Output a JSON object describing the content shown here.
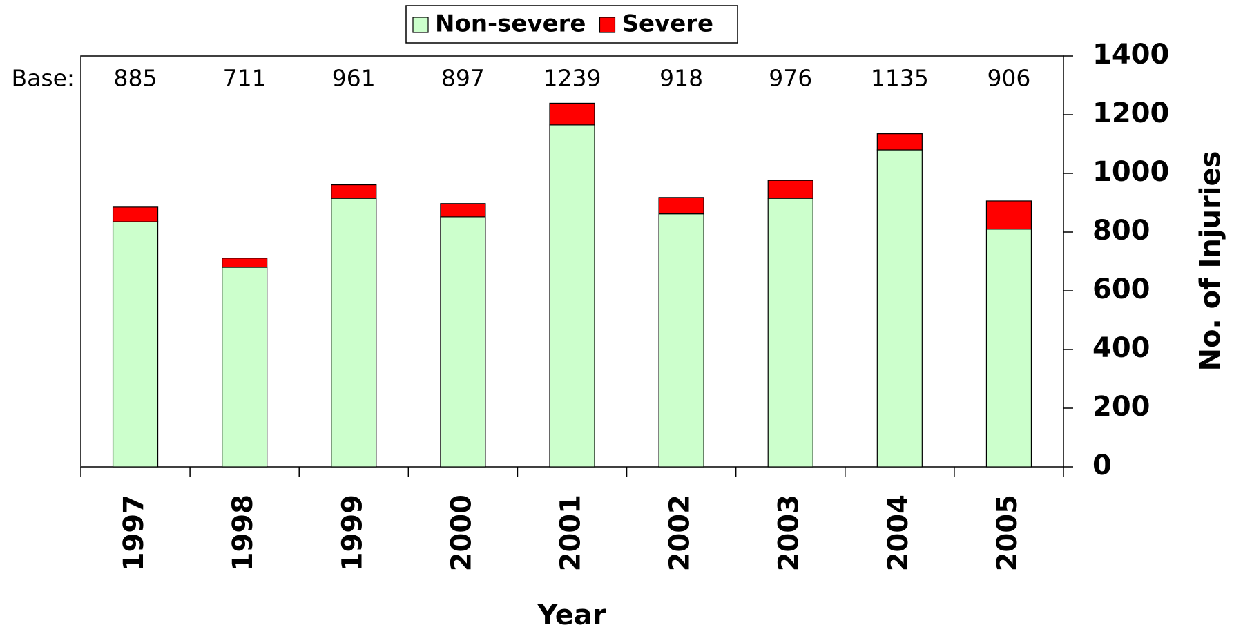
{
  "chart_data": {
    "type": "stacked_bar",
    "categories": [
      "1997",
      "1998",
      "1999",
      "2000",
      "2001",
      "2002",
      "2003",
      "2004",
      "2005"
    ],
    "series": [
      {
        "name": "Non-severe",
        "color": "#ccffcc",
        "values": [
          835,
          680,
          915,
          852,
          1165,
          862,
          915,
          1080,
          810
        ]
      },
      {
        "name": "Severe",
        "color": "#ff0000",
        "values": [
          50,
          31,
          46,
          45,
          74,
          56,
          61,
          55,
          96
        ]
      }
    ],
    "base_label": "Base:",
    "base_values": [
      885,
      711,
      961,
      897,
      1239,
      918,
      976,
      1135,
      906
    ],
    "xlabel": "Year",
    "ylabel": "No. of Injuries",
    "ylim": [
      0,
      1400
    ],
    "yticks": [
      0,
      200,
      400,
      600,
      800,
      1000,
      1200,
      1400
    ],
    "legend": "top"
  }
}
